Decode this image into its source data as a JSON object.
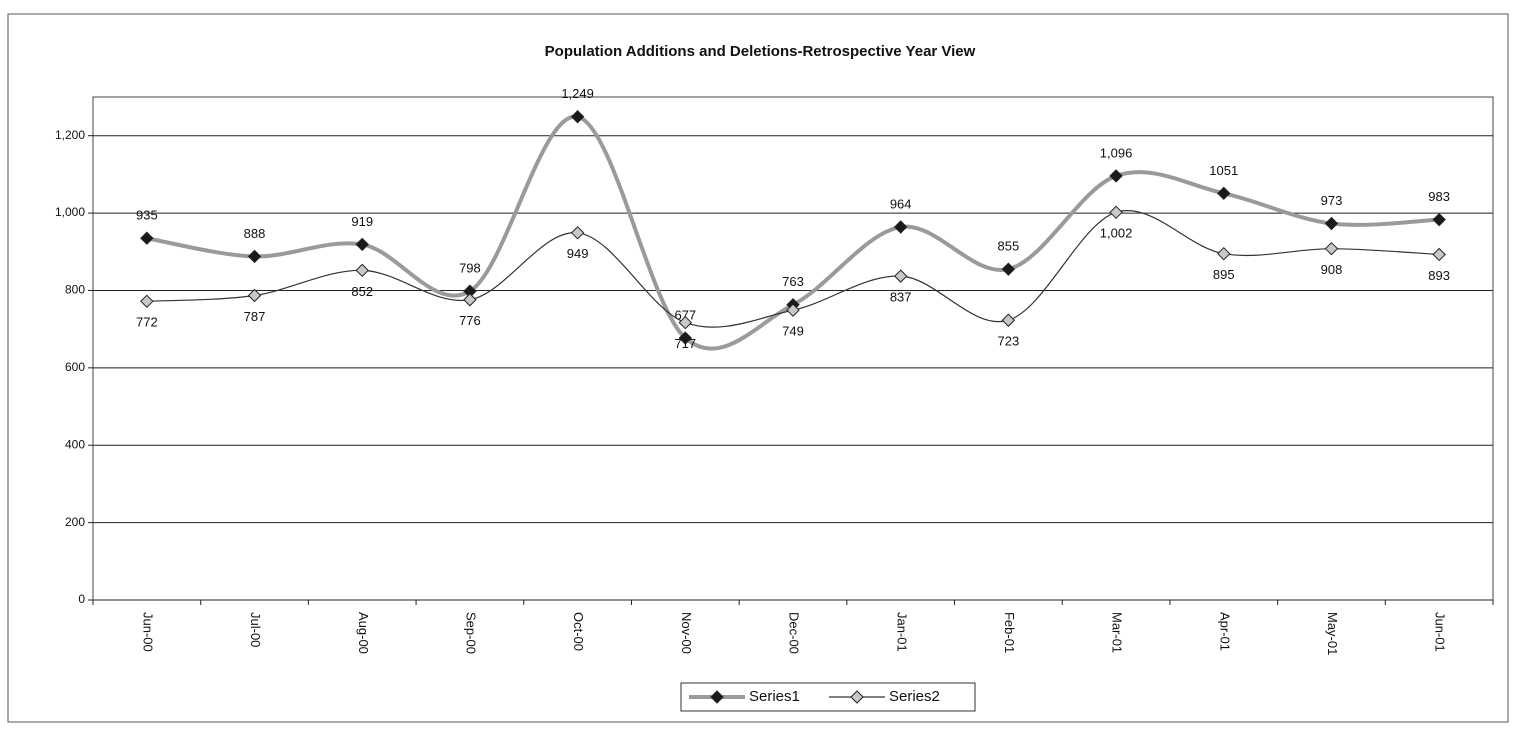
{
  "chart_data": {
    "type": "line",
    "title": "Population Additions and Deletions-Retrospective Year View",
    "categories": [
      "Jun-00",
      "Jul-00",
      "Aug-00",
      "Sep-00",
      "Oct-00",
      "Nov-00",
      "Dec-00",
      "Jan-01",
      "Feb-01",
      "Mar-01",
      "Apr-01",
      "May-01",
      "Jun-01"
    ],
    "series": [
      {
        "name": "Series1",
        "color": "#1a1a1a",
        "values": [
          935,
          888,
          919,
          798,
          1249,
          677,
          763,
          964,
          855,
          1096,
          1051,
          973,
          983
        ],
        "value_labels": [
          "935",
          "888",
          "919",
          "798",
          "1,249",
          "677",
          "763",
          "964",
          "855",
          "1,096",
          "1051",
          "973",
          "983"
        ]
      },
      {
        "name": "Series2",
        "color": "#c8c8c8",
        "values": [
          772,
          787,
          852,
          776,
          949,
          717,
          749,
          837,
          723,
          1002,
          895,
          908,
          893
        ],
        "value_labels": [
          "772",
          "787",
          "852",
          "776",
          "949",
          "717",
          "749",
          "837",
          "723",
          "1,002",
          "895",
          "908",
          "893"
        ]
      }
    ],
    "ylim": [
      0,
      1300
    ],
    "yticks": [
      0,
      200,
      400,
      600,
      800,
      {
        "value": 1000,
        "label": "1,000"
      },
      {
        "value": 1200,
        "label": "1,200"
      }
    ],
    "grid": true,
    "smooth": true,
    "legend": "bottom"
  }
}
